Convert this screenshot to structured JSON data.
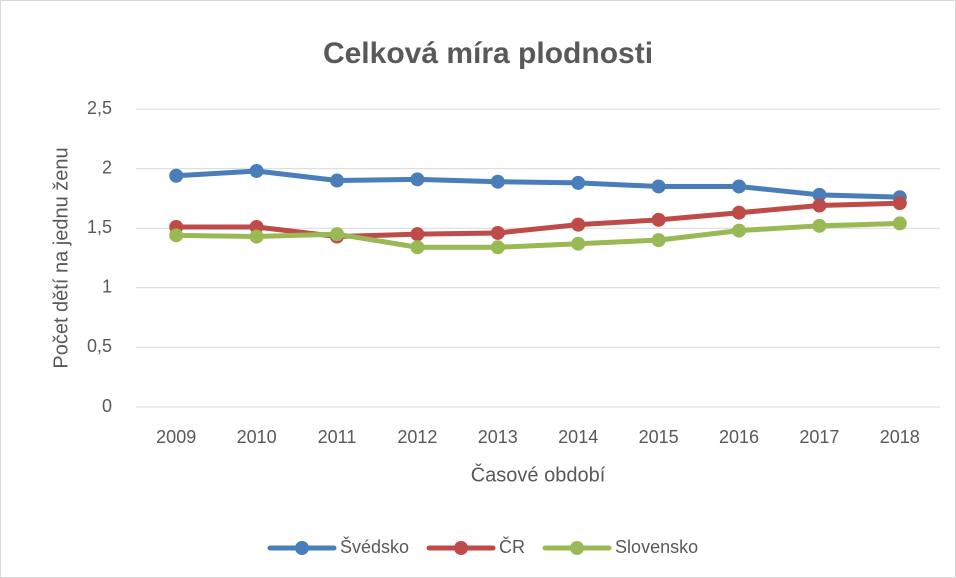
{
  "chart_data": {
    "type": "line",
    "title": "Celková míra plodnosti",
    "x_label": "Časové období",
    "y_label": "Počet dětí na jednu ženu",
    "categories": [
      "2009",
      "2010",
      "2011",
      "2012",
      "2013",
      "2014",
      "2015",
      "2016",
      "2017",
      "2018"
    ],
    "series": [
      {
        "name": "Švédsko",
        "color": "#4a7ebb",
        "values": [
          1.94,
          1.98,
          1.9,
          1.91,
          1.89,
          1.88,
          1.85,
          1.85,
          1.78,
          1.76
        ]
      },
      {
        "name": "ČR",
        "color": "#be4b48",
        "values": [
          1.51,
          1.51,
          1.43,
          1.45,
          1.46,
          1.53,
          1.57,
          1.63,
          1.69,
          1.71
        ]
      },
      {
        "name": "Slovensko",
        "color": "#98b954",
        "values": [
          1.44,
          1.43,
          1.45,
          1.34,
          1.34,
          1.37,
          1.4,
          1.48,
          1.52,
          1.54
        ]
      }
    ],
    "ylim": [
      0,
      2.5
    ],
    "yticks": [
      0,
      {
        "value": 0.5,
        "label": "0,5"
      },
      1,
      {
        "value": 1.5,
        "label": "1,5"
      },
      2,
      {
        "value": 2.5,
        "label": "2,5"
      }
    ],
    "grid": true,
    "legend": "bottom"
  }
}
